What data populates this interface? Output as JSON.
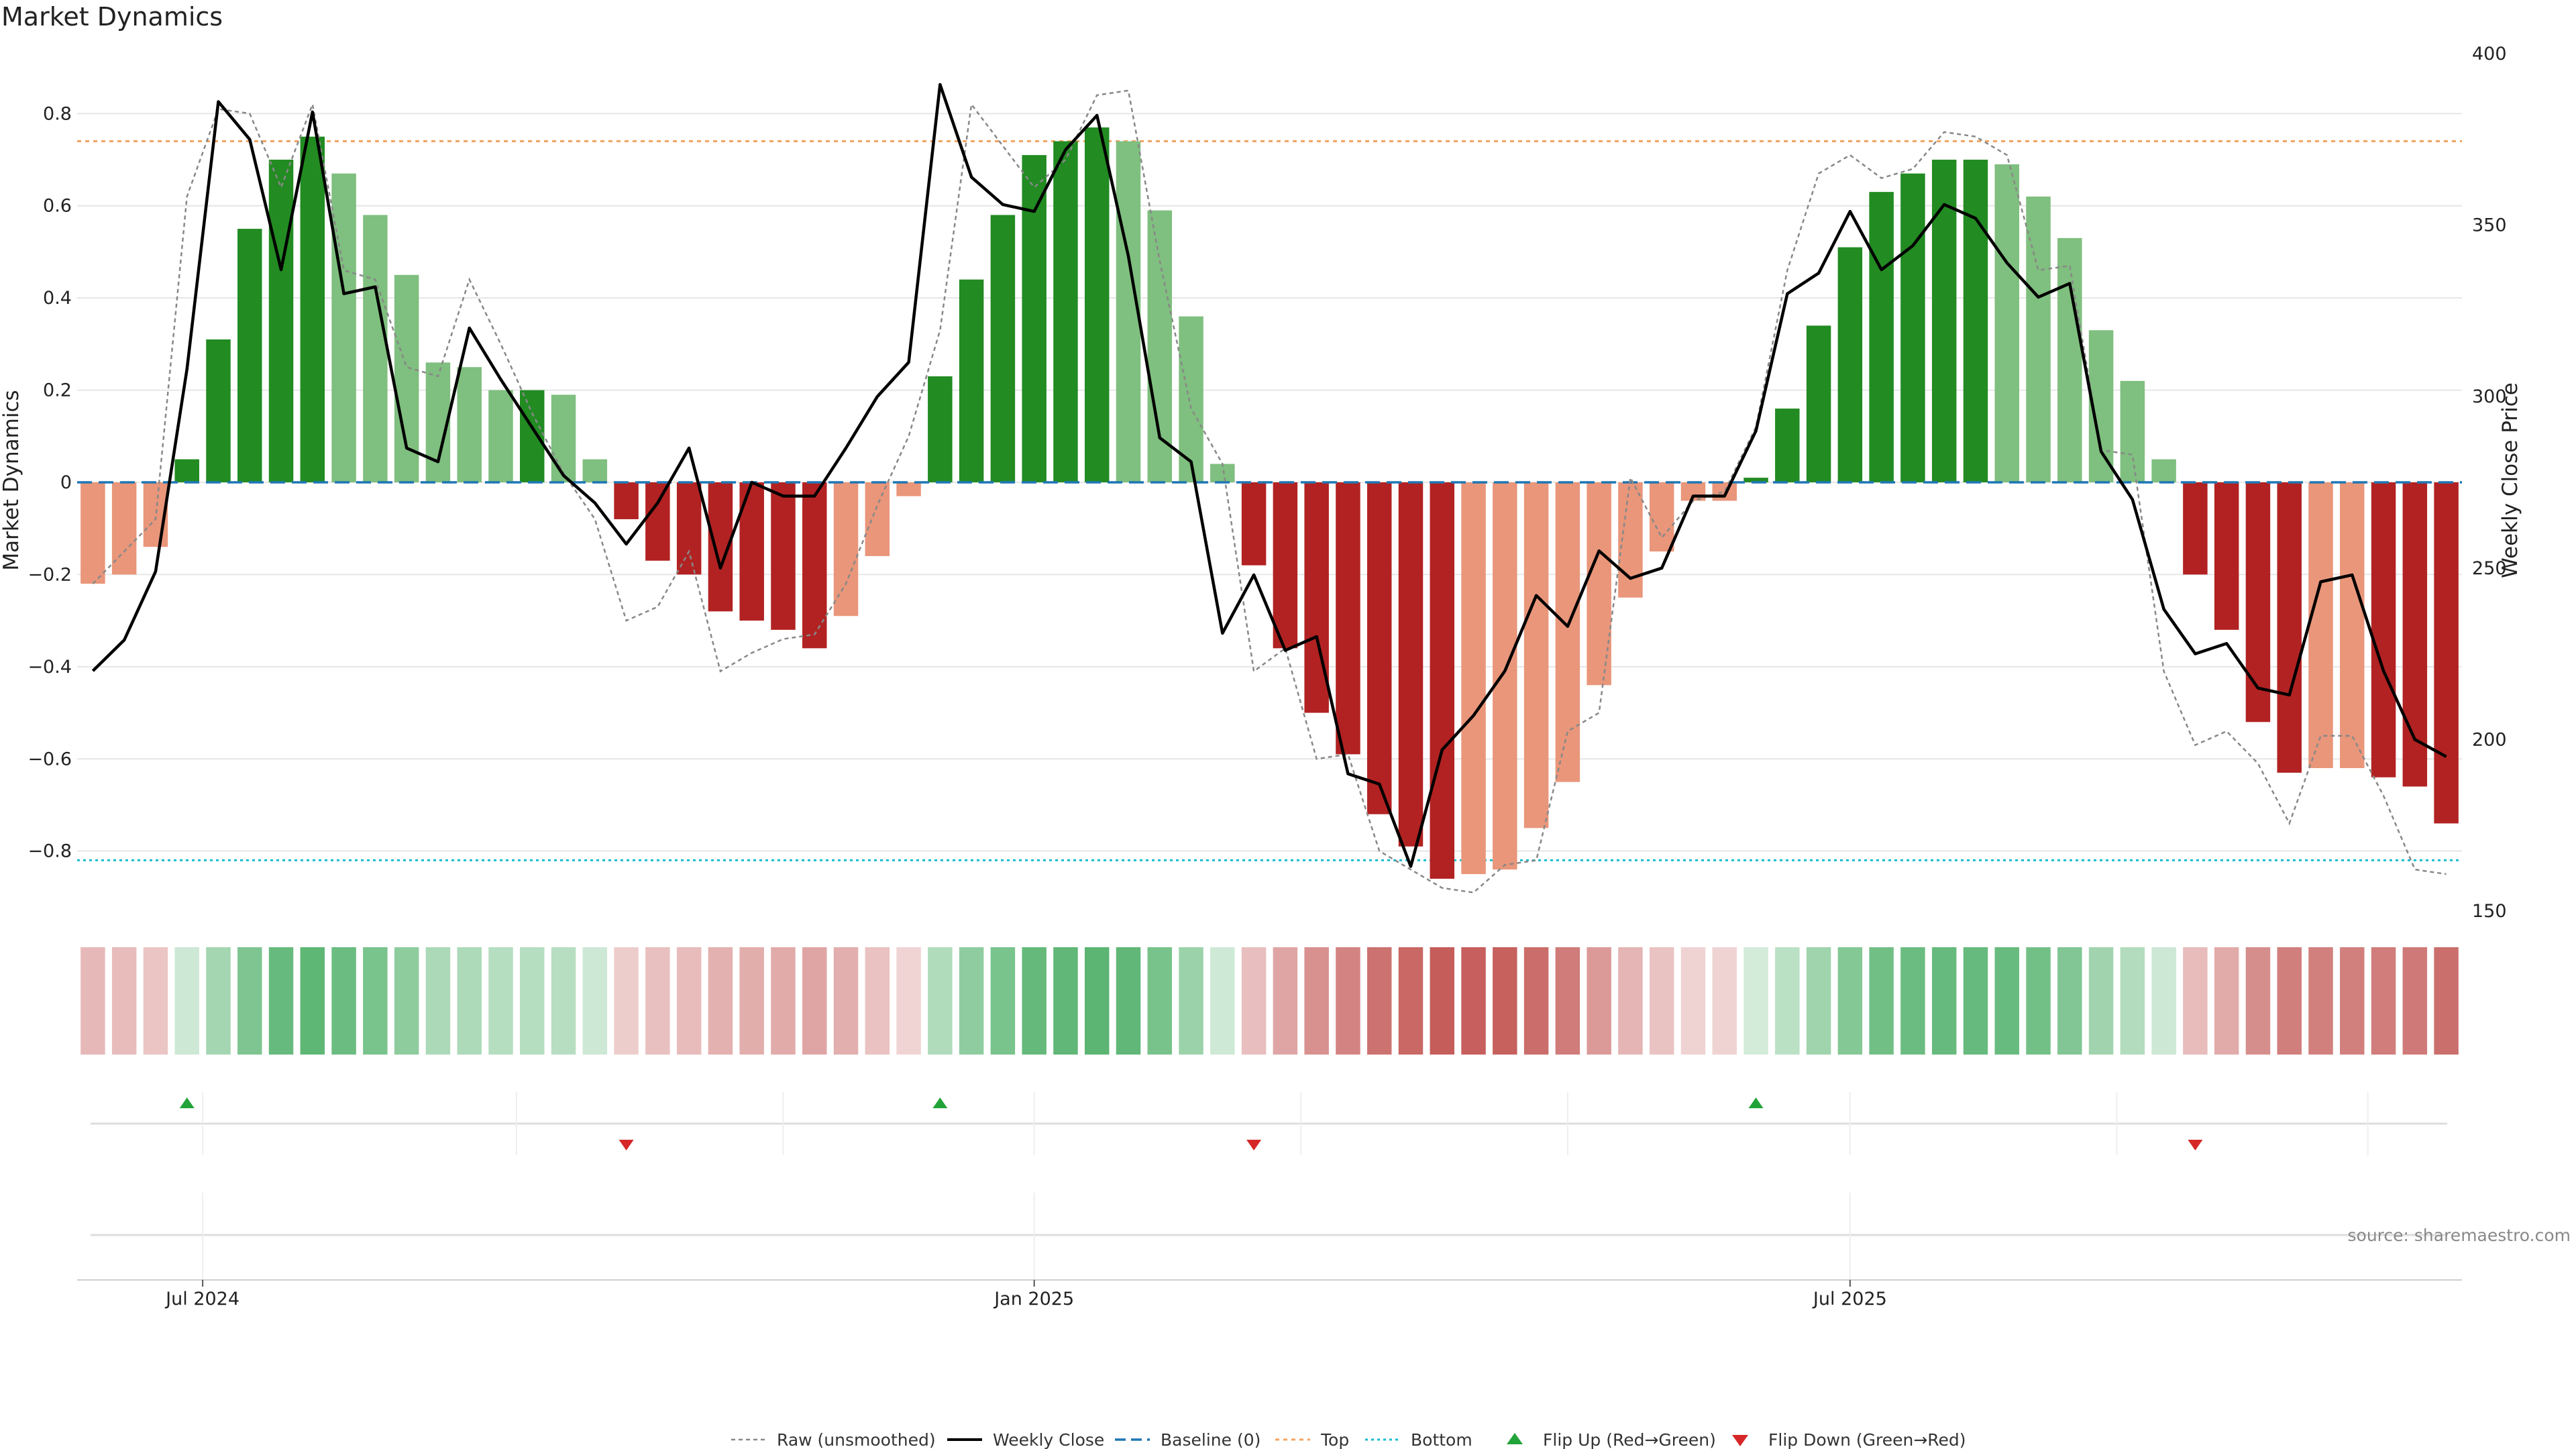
{
  "chart_data": {
    "type": "bar",
    "title": "Market Dynamics",
    "ylabel": "Market Dynamics",
    "y2label": "Weekly Close Price",
    "ylim": [
      -0.93,
      0.93
    ],
    "y2lim": [
      150,
      400
    ],
    "yticks": [
      -0.8,
      -0.6,
      -0.4,
      -0.2,
      0,
      0.2,
      0.4,
      0.6,
      0.8
    ],
    "yticklabels": [
      "−0.8",
      "−0.6",
      "−0.4",
      "−0.2",
      "0",
      "0.2",
      "0.4",
      "0.6",
      "0.8"
    ],
    "y2ticks": [
      150,
      200,
      250,
      300,
      350,
      400
    ],
    "xticks": [
      {
        "week": 4,
        "label": "Jul 2024"
      },
      {
        "week": 30.5,
        "label": "Jan 2025"
      },
      {
        "week": 56.5,
        "label": "Jul 2025"
      }
    ],
    "grid": true,
    "top_level": 0.74,
    "bottom_level": -0.82,
    "colors": {
      "strong_green": "#228b22",
      "light_green": "#7fbf7f",
      "strong_red": "#b22222",
      "light_red": "#e9967a",
      "close_line": "#000000",
      "raw_line": "#888888",
      "baseline": "#1f77b4",
      "top": "#f4a460",
      "bottom": "#17becf",
      "flip_up": "#22a33a",
      "flip_down": "#d62728"
    },
    "series": [
      {
        "name": "Market Dynamics (smoothed)",
        "values": [
          -0.22,
          -0.2,
          -0.14,
          0.05,
          0.31,
          0.55,
          0.7,
          0.75,
          0.67,
          0.58,
          0.45,
          0.26,
          0.25,
          0.2,
          0.2,
          0.19,
          0.05,
          -0.08,
          -0.17,
          -0.2,
          -0.28,
          -0.3,
          -0.32,
          -0.36,
          -0.29,
          -0.16,
          -0.03,
          0.23,
          0.44,
          0.58,
          0.71,
          0.74,
          0.77,
          0.74,
          0.59,
          0.36,
          0.04,
          -0.18,
          -0.36,
          -0.5,
          -0.59,
          -0.72,
          -0.79,
          -0.86,
          -0.85,
          -0.84,
          -0.75,
          -0.65,
          -0.44,
          -0.25,
          -0.15,
          -0.04,
          -0.04,
          0.01,
          0.16,
          0.34,
          0.51,
          0.63,
          0.67,
          0.7,
          0.7,
          0.69,
          0.62,
          0.53,
          0.33,
          0.22,
          0.05,
          -0.2,
          -0.32,
          -0.52,
          -0.63,
          -0.62,
          -0.62,
          -0.64,
          -0.66,
          -0.74
        ]
      },
      {
        "name": "Weekly Close",
        "values": [
          220,
          229,
          249,
          308,
          386,
          375,
          337,
          383,
          330,
          332,
          285,
          281,
          320,
          305,
          291,
          277,
          269,
          257,
          269,
          285,
          250,
          275,
          271,
          271,
          285,
          300,
          310,
          391,
          364,
          356,
          354,
          372,
          382,
          341,
          288,
          281,
          231,
          248,
          226,
          230,
          190,
          187,
          163,
          197,
          207,
          220,
          242,
          233,
          255,
          247,
          250,
          271,
          271,
          290,
          330,
          336,
          354,
          337,
          344,
          356,
          352,
          339,
          329,
          333,
          284,
          270,
          238,
          225,
          228,
          215,
          213,
          246,
          248,
          220,
          200,
          195
        ]
      },
      {
        "name": "Raw (unsmoothed)",
        "values": [
          -0.22,
          -0.15,
          -0.08,
          0.62,
          0.81,
          0.8,
          0.64,
          0.82,
          0.46,
          0.44,
          0.25,
          0.23,
          0.44,
          0.3,
          0.15,
          0.02,
          -0.08,
          -0.3,
          -0.27,
          -0.15,
          -0.41,
          -0.37,
          -0.34,
          -0.33,
          -0.22,
          -0.05,
          0.1,
          0.33,
          0.82,
          0.73,
          0.64,
          0.7,
          0.84,
          0.85,
          0.48,
          0.16,
          0.04,
          -0.41,
          -0.36,
          -0.6,
          -0.59,
          -0.8,
          -0.84,
          -0.88,
          -0.89,
          -0.83,
          -0.82,
          -0.54,
          -0.5,
          0.01,
          -0.12,
          -0.04,
          -0.02,
          0.12,
          0.46,
          0.67,
          0.71,
          0.66,
          0.68,
          0.76,
          0.75,
          0.71,
          0.46,
          0.47,
          0.07,
          0.06,
          -0.41,
          -0.57,
          -0.54,
          -0.61,
          -0.74,
          -0.55,
          -0.55,
          -0.68,
          -0.84,
          -0.85
        ]
      }
    ],
    "flip_up_weeks": [
      3,
      27,
      53
    ],
    "flip_down_weeks": [
      17,
      37,
      67
    ],
    "legend_position": "bottom-center",
    "legend": [
      "Raw (unsmoothed)",
      "Weekly Close",
      "Baseline (0)",
      "Top",
      "Bottom",
      "Flip Up (Red→Green)",
      "Flip Down (Green→Red)"
    ],
    "source": "source: sharemaestro.com"
  }
}
